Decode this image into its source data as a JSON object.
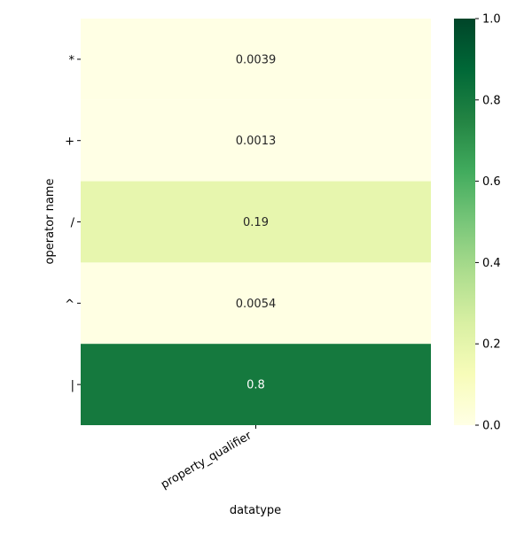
{
  "chart_data": {
    "type": "heatmap",
    "xlabel": "datatype",
    "ylabel": "operator name",
    "x_categories": [
      "property_qualifier"
    ],
    "y_categories": [
      "*",
      "+",
      "/",
      "^",
      "|"
    ],
    "values": [
      [
        0.0039
      ],
      [
        0.0013
      ],
      [
        0.19
      ],
      [
        0.0054
      ],
      [
        0.8
      ]
    ],
    "cell_labels": [
      [
        "0.0039"
      ],
      [
        "0.0013"
      ],
      [
        "0.19"
      ],
      [
        "0.0054"
      ],
      [
        "0.8"
      ]
    ],
    "colorbar": {
      "range": [
        0,
        1
      ],
      "ticks": [
        0.0,
        0.2,
        0.4,
        0.6,
        0.8,
        1.0
      ],
      "tick_labels": [
        "0.0",
        "0.2",
        "0.4",
        "0.6",
        "0.8",
        "1.0"
      ],
      "colormap": "YlGn",
      "colors": [
        "#ffffe5",
        "#f7fcb9",
        "#d9f0a3",
        "#addd8e",
        "#78c679",
        "#41ab5d",
        "#238443",
        "#006837",
        "#004529"
      ]
    }
  }
}
